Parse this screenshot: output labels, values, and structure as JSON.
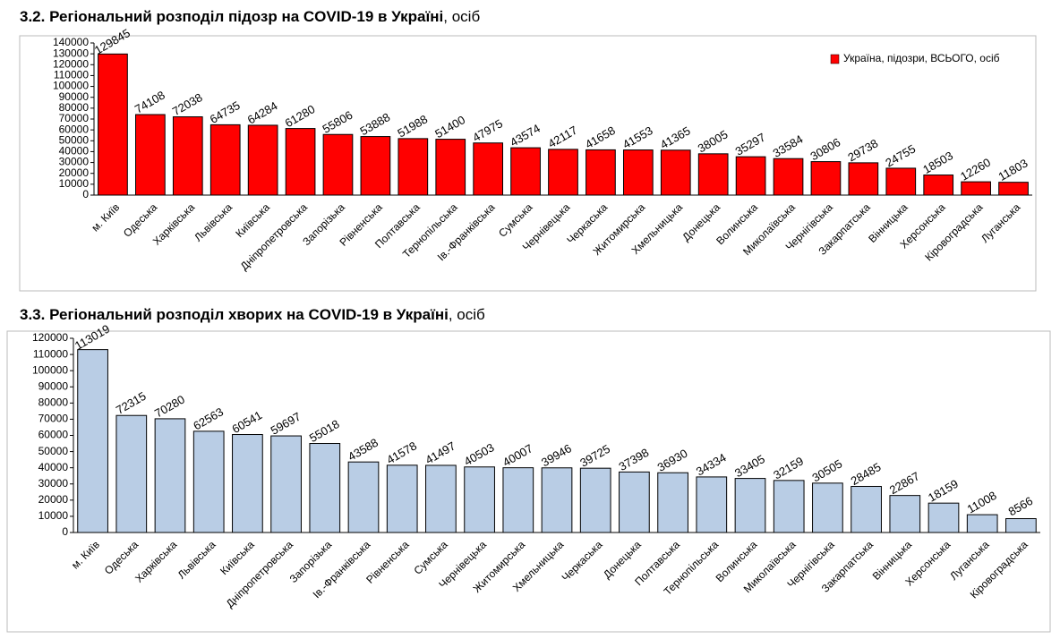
{
  "chart_data": [
    {
      "type": "bar",
      "title": "3.2.  Регіональний розподіл підозр на COVID-19 в Україні",
      "title_unit": ", осіб",
      "categories": [
        "м. Київ",
        "Одеська",
        "Харківська",
        "Львівська",
        "Київська",
        "Дніпропетровська",
        "Запорізька",
        "Рівненська",
        "Полтавська",
        "Тернопільська",
        "Ів.-Франківська",
        "Сумська",
        "Чернівецька",
        "Черкаська",
        "Житомирська",
        "Хмельницька",
        "Донецька",
        "Волинська",
        "Миколаївська",
        "Чернігівська",
        "Закарпатська",
        "Вінницька",
        "Херсонська",
        "Кіровоградська",
        "Луганська"
      ],
      "series": [
        {
          "name": "Україна, підозри, ВСЬОГО, осіб",
          "color": "#ff0000",
          "values": [
            129845,
            74108,
            72038,
            64735,
            64284,
            61280,
            55806,
            53888,
            51988,
            51400,
            47975,
            43574,
            42117,
            41658,
            41553,
            41365,
            38005,
            35297,
            33584,
            30806,
            29738,
            24755,
            18503,
            12260,
            11803
          ]
        }
      ],
      "ylim": [
        0,
        140000
      ],
      "yticks": [
        0,
        10000,
        20000,
        30000,
        40000,
        50000,
        60000,
        70000,
        80000,
        90000,
        100000,
        110000,
        120000,
        130000,
        140000
      ],
      "legend": "top-right"
    },
    {
      "type": "bar",
      "title": "3.3.  Регіональний розподіл хворих на COVID-19 в Україні",
      "title_unit": ", осіб",
      "categories": [
        "м. Київ",
        "Одеська",
        "Харківська",
        "Львівська",
        "Київська",
        "Дніпропетровська",
        "Запорізька",
        "Ів.-Франківська",
        "Рівненська",
        "Сумська",
        "Чернівецька",
        "Житомирська",
        "Хмельницька",
        "Черкаська",
        "Донецька",
        "Полтавська",
        "Тернопільська",
        "Волинська",
        "Миколаївська",
        "Чернігівська",
        "Закарпатська",
        "Вінницька",
        "Херсонська",
        "Луганська",
        "Кіровоградська"
      ],
      "series": [
        {
          "color": "#b9cde5",
          "values": [
            113019,
            72315,
            70280,
            62563,
            60541,
            59697,
            55018,
            43588,
            41578,
            41497,
            40503,
            40007,
            39946,
            39725,
            37398,
            36930,
            34334,
            33405,
            32159,
            30505,
            28485,
            22867,
            18159,
            11008,
            8566
          ]
        }
      ],
      "ylim": [
        0,
        120000
      ],
      "yticks": [
        0,
        10000,
        20000,
        30000,
        40000,
        50000,
        60000,
        70000,
        80000,
        90000,
        100000,
        110000,
        120000
      ]
    }
  ]
}
